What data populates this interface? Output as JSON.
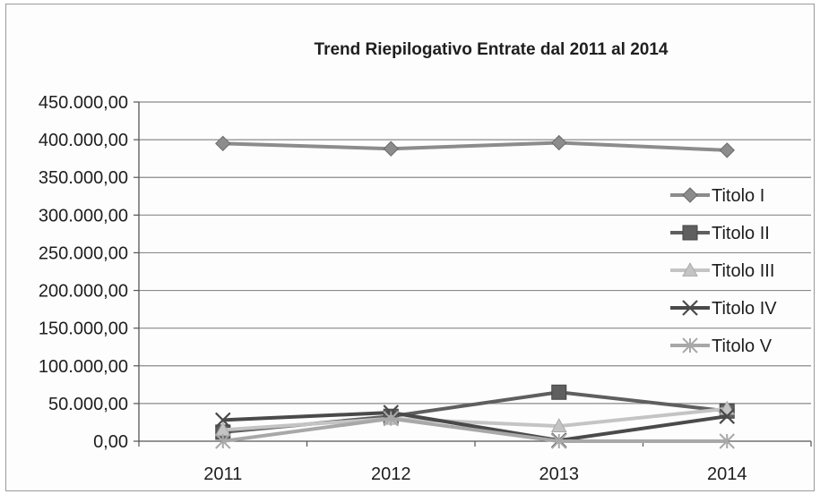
{
  "chart_data": {
    "type": "line",
    "title": "Trend Riepilogativo Entrate dal 2011 al 2014",
    "xlabel": "",
    "ylabel": "",
    "categories": [
      "2011",
      "2012",
      "2013",
      "2014"
    ],
    "ylim": [
      0,
      450000
    ],
    "ytick_values": [
      0,
      50000,
      100000,
      150000,
      200000,
      250000,
      300000,
      350000,
      400000,
      450000
    ],
    "ytick_labels": [
      "0,00",
      "50.000,00",
      "100.000,00",
      "150.000,00",
      "200.000,00",
      "250.000,00",
      "300.000,00",
      "350.000,00",
      "400.000,00",
      "450.000,00"
    ],
    "grid": "horizontal",
    "legend_position": "right",
    "series": [
      {
        "name": "Titolo I",
        "marker": "diamond",
        "color": "#8c8c8c",
        "values": [
          395000,
          388000,
          396000,
          386000
        ]
      },
      {
        "name": "Titolo II",
        "marker": "square",
        "color": "#5f5f5f",
        "values": [
          12000,
          33000,
          65000,
          40000
        ]
      },
      {
        "name": "Titolo III",
        "marker": "triangle",
        "color": "#c4c4c4",
        "values": [
          15000,
          30000,
          20000,
          43000
        ]
      },
      {
        "name": "Titolo IV",
        "marker": "x",
        "color": "#4a4a4a",
        "values": [
          28000,
          38000,
          1000,
          33000
        ]
      },
      {
        "name": "Titolo V",
        "marker": "star",
        "color": "#a8a8a8",
        "values": [
          0,
          30000,
          0,
          0
        ]
      }
    ]
  }
}
